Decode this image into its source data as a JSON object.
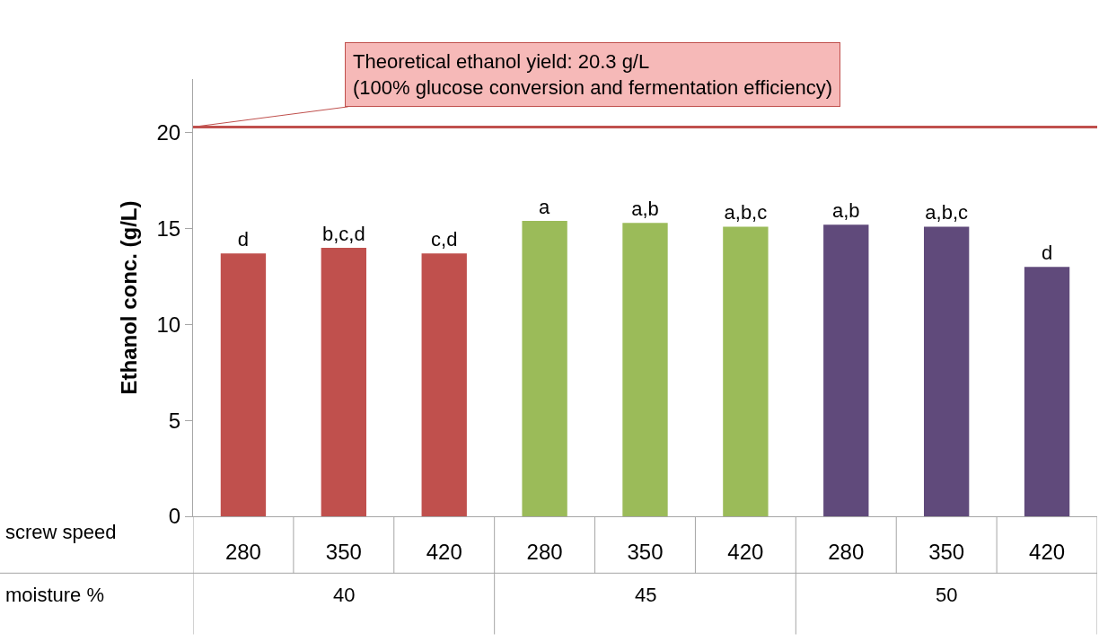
{
  "chart_data": {
    "type": "bar",
    "ylabel": "Ethanol conc. (g/L)",
    "categories": [
      "280",
      "350",
      "420",
      "280",
      "350",
      "420",
      "280",
      "350",
      "420"
    ],
    "values": [
      13.7,
      14.0,
      13.7,
      15.4,
      15.3,
      15.1,
      15.2,
      15.1,
      13.0
    ],
    "colors": [
      "#c0504d",
      "#c0504d",
      "#c0504d",
      "#9bbb59",
      "#9bbb59",
      "#9bbb59",
      "#604a7b",
      "#604a7b",
      "#604a7b"
    ],
    "value_labels": [
      "d",
      "b,c,d",
      "c,d",
      "a",
      "a,b",
      "a,b,c",
      "a,b",
      "a,b,c",
      "d"
    ],
    "ylim": [
      0,
      22.8
    ],
    "yticks": [
      0,
      5,
      10,
      15,
      20
    ],
    "ref_lines": [
      {
        "axis": "y",
        "value": 20.3,
        "label": "Theoretical ethanol yield: 20.3 g/L\n(100% glucose conversion and fermentation efficiency)",
        "color": "#c0504d"
      }
    ],
    "annotations": [
      "screw speed",
      "moisture %",
      "40",
      "45",
      "50"
    ]
  }
}
